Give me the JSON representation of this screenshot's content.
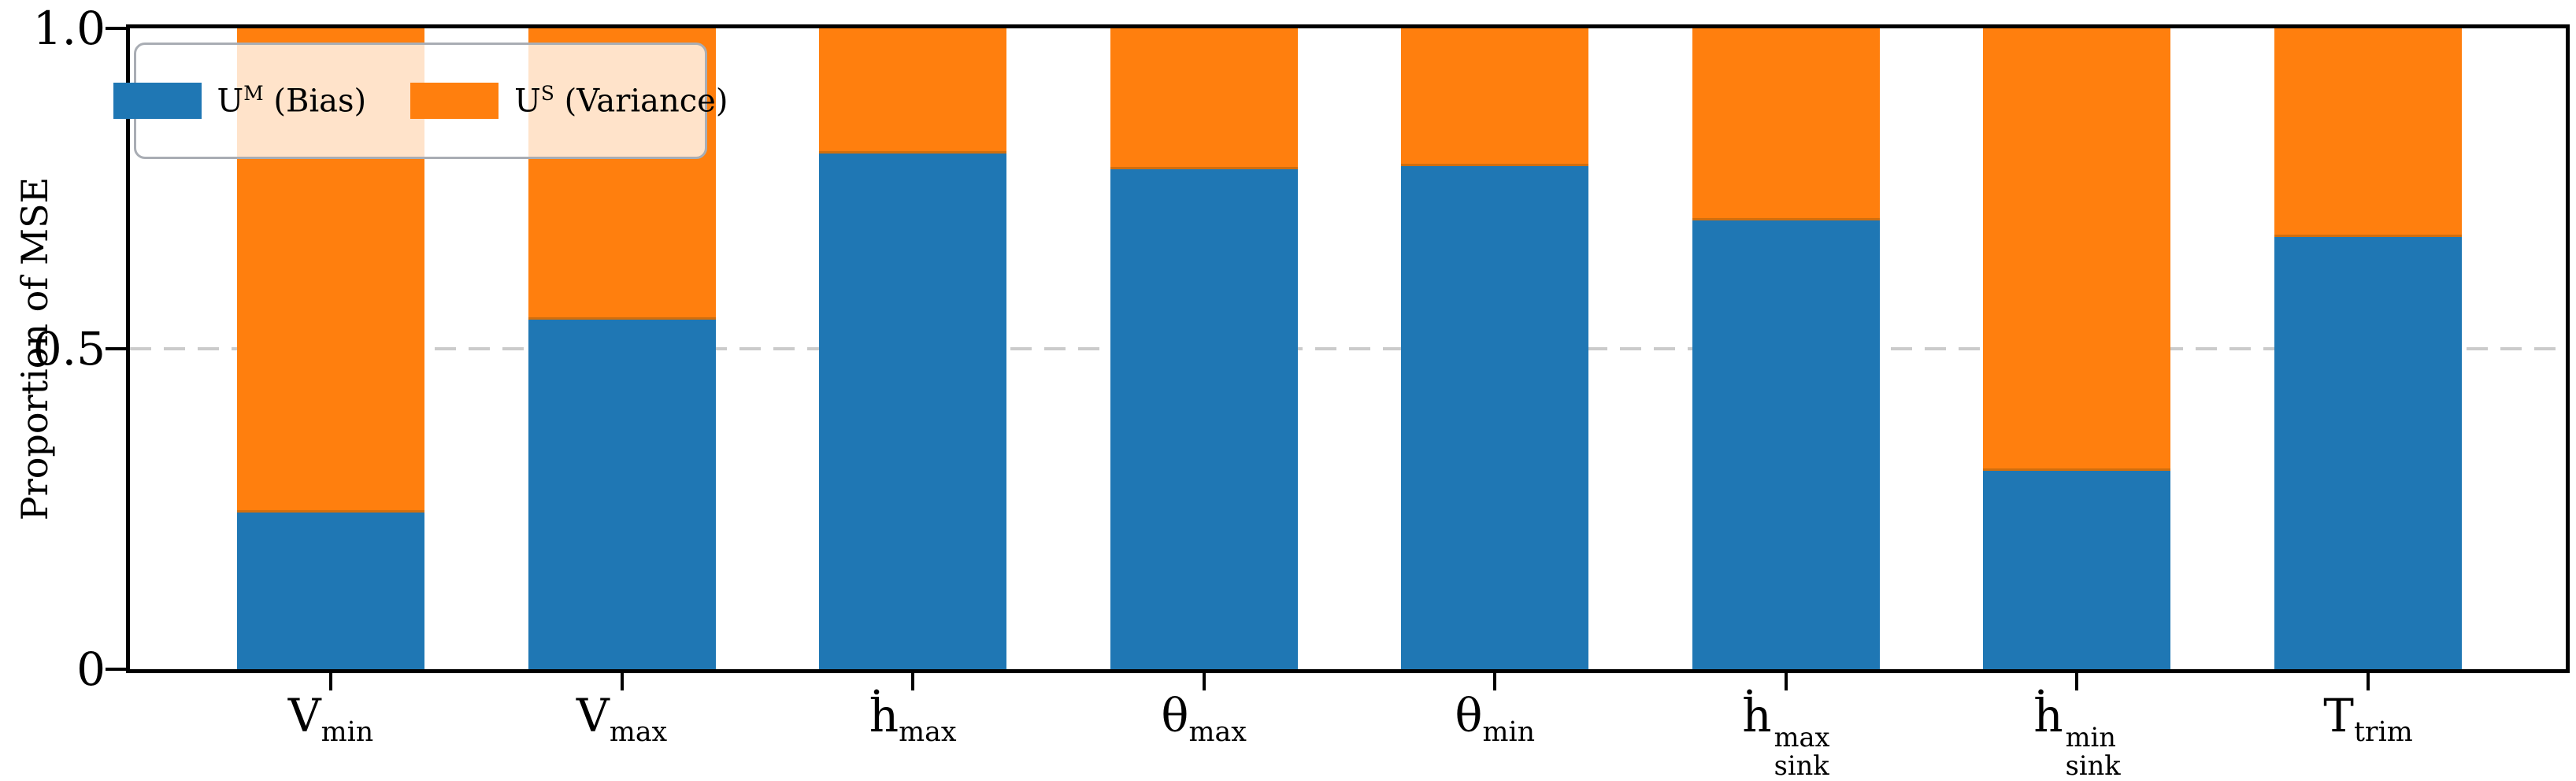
{
  "figure": {
    "ylabel": "Proportion of MSE",
    "background_color": "#ffffff",
    "spine_color": "#000000",
    "gridline_color": "#cbcbcb"
  },
  "legend": {
    "items": [
      {
        "name": "um-bias",
        "label_base": "U",
        "label_sup": "M",
        "label_rest": " (Bias)",
        "color": "#1f77b4"
      },
      {
        "name": "us-variance",
        "label_base": "U",
        "label_sup": "S",
        "label_rest": " (Variance)",
        "color": "#ff7f0e"
      }
    ]
  },
  "chart_data": {
    "type": "bar",
    "stacked": true,
    "title": "",
    "xlabel": "",
    "ylabel": "Proportion of MSE",
    "ylim": [
      0,
      1
    ],
    "grid": "single dashed horizontal line at y=0.5",
    "legend_position": "upper left",
    "categories": [
      "V_min",
      "V_max",
      "hdot_max",
      "theta_max",
      "theta_min",
      "hdot_sink^max",
      "hdot_sink^min",
      "T_trim"
    ],
    "category_labels": [
      {
        "base": "V",
        "sub": "min"
      },
      {
        "base": "V",
        "sub": "max"
      },
      {
        "base": "ḣ",
        "sub": "max"
      },
      {
        "base": "θ",
        "sub": "max"
      },
      {
        "base": "θ",
        "sub": "min"
      },
      {
        "base": "ḣ",
        "sup": "max",
        "sub": "sink"
      },
      {
        "base": "ḣ",
        "sup": "min",
        "sub": "sink"
      },
      {
        "base": "T",
        "sub": "trim"
      }
    ],
    "series": [
      {
        "name": "U^M (Bias)",
        "color": "#1f77b4",
        "values": [
          0.245,
          0.545,
          0.805,
          0.78,
          0.785,
          0.7,
          0.31,
          0.675
        ]
      },
      {
        "name": "U^S (Variance)",
        "color": "#ff7f0e",
        "values": [
          0.755,
          0.455,
          0.195,
          0.22,
          0.215,
          0.3,
          0.69,
          0.325
        ]
      }
    ],
    "yticks": [
      {
        "value": 0,
        "label": "0"
      },
      {
        "value": 0.5,
        "label": "0.5"
      },
      {
        "value": 1,
        "label": "1.0"
      }
    ],
    "gridlines": [
      {
        "value": 0.5,
        "style": "dashed"
      }
    ]
  }
}
